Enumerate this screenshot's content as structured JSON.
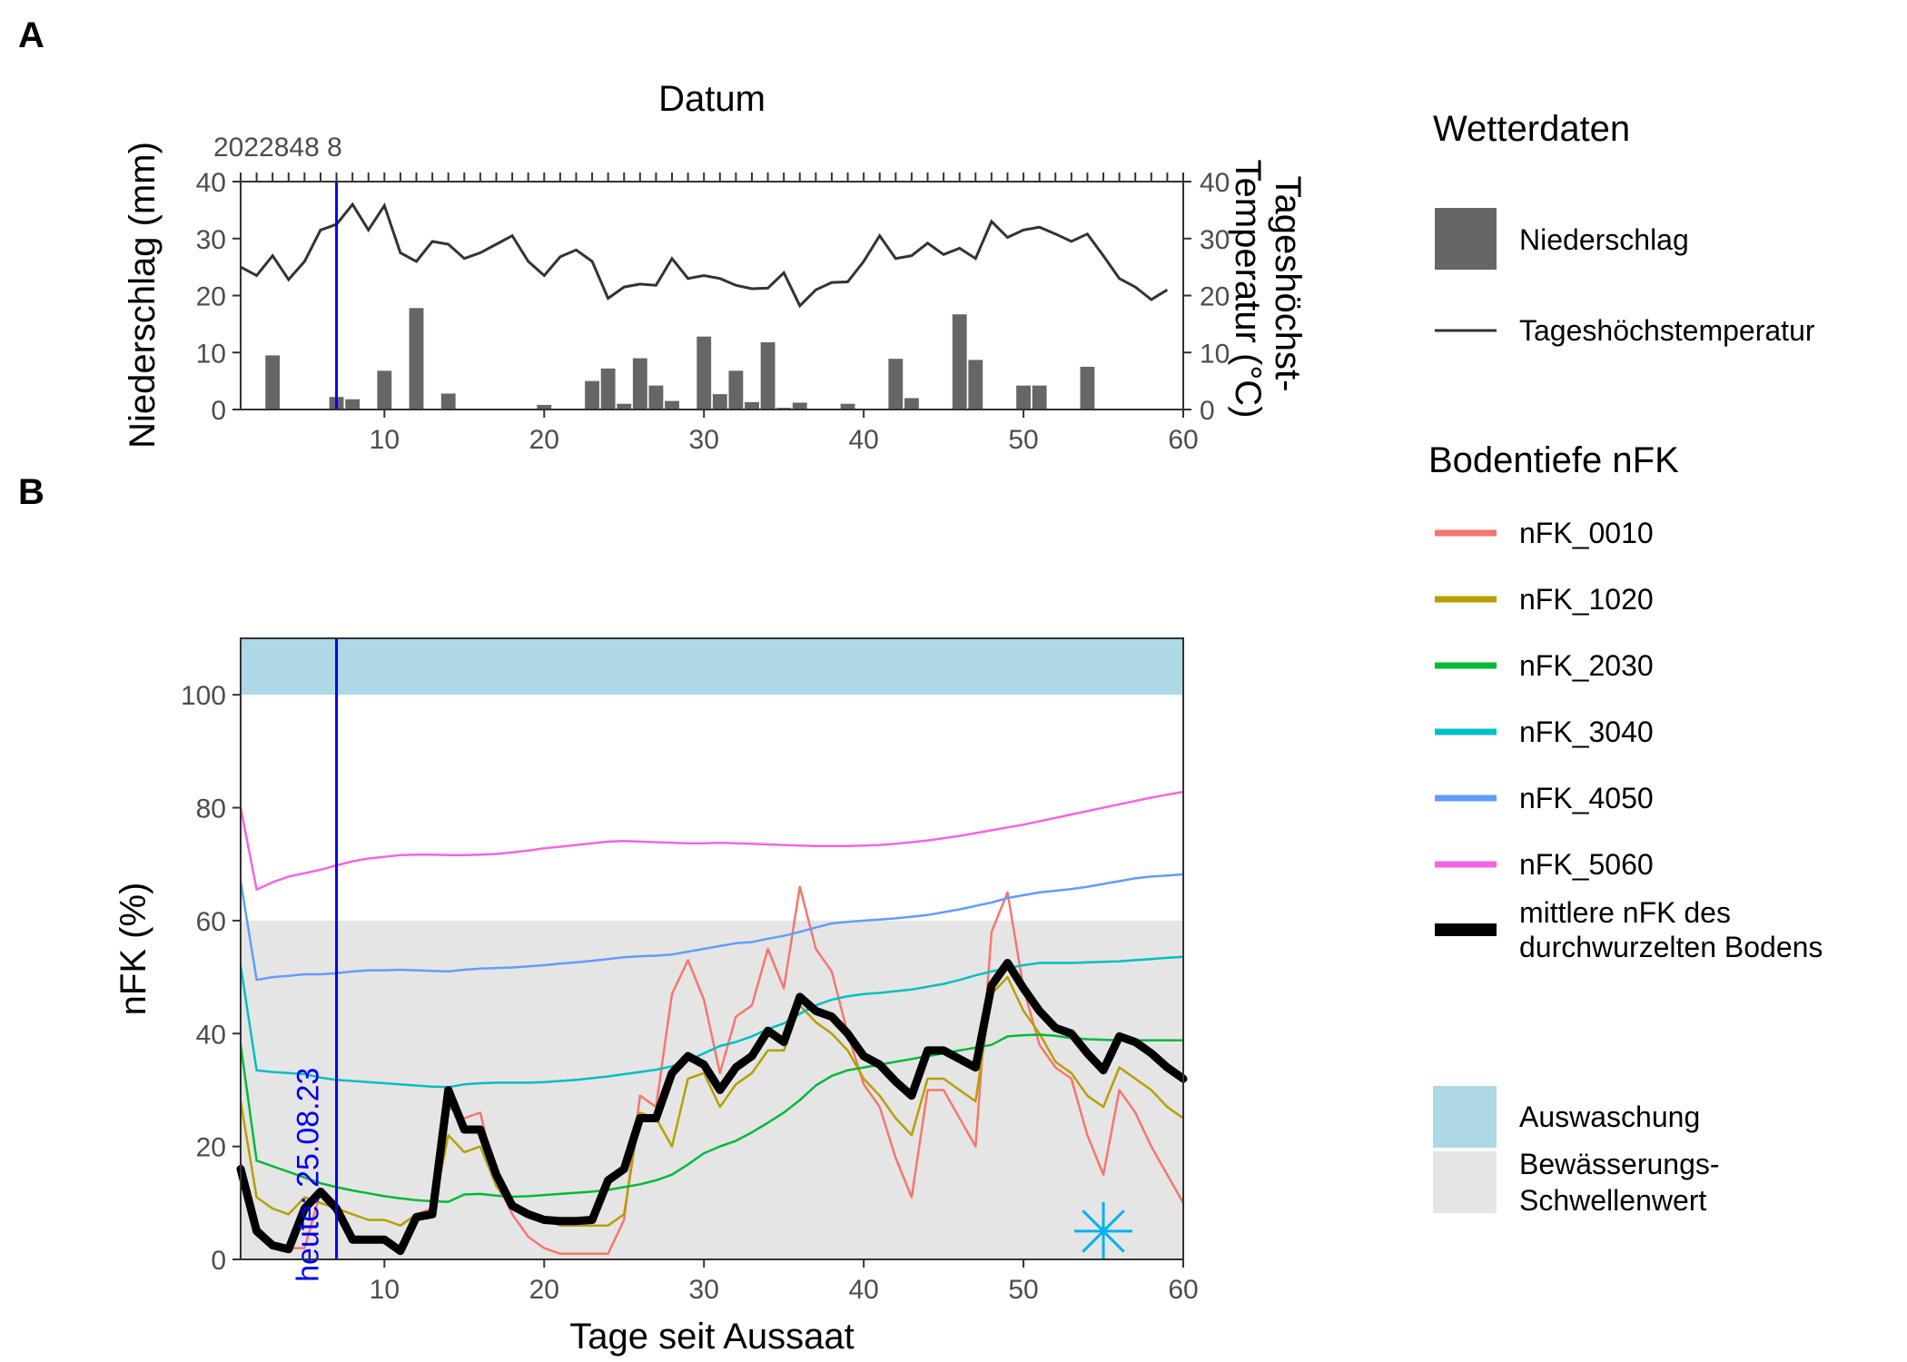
{
  "chart_data": [
    {
      "panel_label": "A",
      "type": "bar+line",
      "top_axis_title": "Datum",
      "top_axis_visible_label": "2022848 8",
      "xlabel": "",
      "ylabel_left": "Niederschlag (mm)",
      "ylabel_right": "Tageshöchst-\nTemperatur (°C)",
      "xlim": [
        1,
        60
      ],
      "ylim": [
        0,
        40
      ],
      "x_ticks": [
        10,
        20,
        30,
        40,
        50,
        60
      ],
      "y_ticks": [
        0,
        10,
        20,
        30,
        40
      ],
      "today_line_x": 7,
      "series": [
        {
          "name": "Niederschlag",
          "type": "bar",
          "color": "#666666",
          "x": [
            3,
            7,
            8,
            10,
            12,
            14,
            20,
            23,
            24,
            25,
            26,
            27,
            28,
            30,
            31,
            32,
            33,
            34,
            35,
            36,
            39,
            42,
            43,
            46,
            47,
            50,
            51,
            54
          ],
          "values": [
            9.5,
            2.2,
            1.8,
            6.8,
            17.8,
            2.8,
            0.8,
            5.0,
            7.2,
            1.0,
            9.0,
            4.2,
            1.5,
            12.8,
            2.7,
            6.8,
            1.3,
            11.8,
            0.3,
            1.2,
            1.0,
            8.9,
            2.0,
            16.7,
            8.7,
            4.2,
            4.2,
            7.5
          ]
        },
        {
          "name": "Tageshöchstemperatur",
          "type": "line",
          "color": "#333333",
          "x": [
            1,
            2,
            3,
            4,
            5,
            6,
            7,
            8,
            9,
            10,
            11,
            12,
            13,
            14,
            15,
            16,
            17,
            18,
            19,
            20,
            21,
            22,
            23,
            24,
            25,
            26,
            27,
            28,
            29,
            30,
            31,
            32,
            33,
            34,
            35,
            36,
            37,
            38,
            39,
            40,
            41,
            42,
            43,
            44,
            45,
            46,
            47,
            48,
            49,
            50,
            51,
            52,
            53,
            54,
            55,
            56,
            57,
            58,
            59
          ],
          "values": [
            25,
            23.5,
            27,
            22.8,
            26,
            31.5,
            32.5,
            36,
            31.5,
            35.8,
            27.5,
            26,
            29.5,
            29,
            26.5,
            27.5,
            29,
            30.5,
            26,
            23.5,
            26.8,
            28,
            26,
            19.5,
            21.5,
            22,
            21.8,
            26.5,
            23,
            23.5,
            23,
            21.8,
            21.2,
            21.3,
            24,
            18.2,
            21,
            22.3,
            22.4,
            26,
            30.5,
            26.5,
            27,
            29.2,
            27.2,
            28.3,
            26.5,
            33,
            30.2,
            31.5,
            32,
            30.8,
            29.5,
            30.8,
            27,
            23,
            21.5,
            19.3,
            21
          ]
        }
      ]
    },
    {
      "panel_label": "B",
      "type": "line",
      "xlabel": "Tage seit Aussaat",
      "ylabel": "nFK (%)",
      "xlim": [
        1,
        60
      ],
      "ylim": [
        0,
        110
      ],
      "x_ticks": [
        10,
        20,
        30,
        40,
        50,
        60
      ],
      "y_ticks": [
        0,
        20,
        40,
        60,
        80,
        100
      ],
      "today_line_x": 7,
      "today_label": "heute: 25.08.23",
      "bands": [
        {
          "name": "Auswaschung",
          "from": 100,
          "to": 110,
          "color": "#add8e6"
        },
        {
          "name": "Bewässerungs-\nSchwellenwert",
          "from": 0,
          "to": 60,
          "color": "#e5e5e5"
        }
      ],
      "marker": {
        "symbol": "asterisk",
        "x": 55,
        "y": 5,
        "color": "#00b2ee"
      },
      "x": [
        1,
        2,
        3,
        4,
        5,
        6,
        7,
        8,
        9,
        10,
        11,
        12,
        13,
        14,
        15,
        16,
        17,
        18,
        19,
        20,
        21,
        22,
        23,
        24,
        25,
        26,
        27,
        28,
        29,
        30,
        31,
        32,
        33,
        34,
        35,
        36,
        37,
        38,
        39,
        40,
        41,
        42,
        43,
        44,
        45,
        46,
        47,
        48,
        49,
        50,
        51,
        52,
        53,
        54,
        55,
        56,
        57,
        58,
        59,
        60
      ],
      "series": [
        {
          "name": "nFK_0010",
          "color": "#f8766d",
          "width": 2.5,
          "values": [
            17,
            6,
            3,
            2,
            2,
            12,
            10,
            3,
            3,
            3,
            2,
            8,
            9,
            27,
            25,
            26,
            14,
            8,
            4,
            2,
            1,
            1,
            1,
            1,
            7,
            29,
            27,
            47,
            53,
            46,
            33,
            43,
            45,
            55,
            48,
            66,
            55,
            51,
            40,
            31,
            27,
            18,
            11,
            30,
            30,
            25,
            20,
            58,
            65,
            48,
            38,
            34,
            32,
            22,
            15,
            30,
            26,
            20,
            15,
            10
          ]
        },
        {
          "name": "nFK_1020",
          "color": "#b79f00",
          "width": 2.5,
          "values": [
            28,
            11,
            9,
            8,
            11,
            10,
            9,
            8,
            7,
            7,
            6,
            8,
            8,
            22,
            19,
            20,
            13,
            9,
            8,
            7,
            6,
            6,
            6,
            6,
            8,
            26,
            25,
            20,
            32,
            33,
            27,
            31,
            33,
            37,
            37,
            45,
            42,
            40,
            37,
            32,
            29,
            25,
            22,
            32,
            32,
            30,
            28,
            47,
            50,
            44,
            40,
            35,
            33,
            29,
            27,
            34,
            32,
            30,
            27,
            25
          ]
        },
        {
          "name": "nFK_2030",
          "color": "#00ba38",
          "width": 2.5,
          "values": [
            38,
            17.5,
            16.5,
            15.5,
            14.5,
            13.5,
            12.8,
            12.2,
            11.7,
            11.2,
            10.8,
            10.5,
            10.3,
            10.2,
            11.5,
            11.6,
            11.3,
            11.1,
            11.2,
            11.4,
            11.6,
            11.8,
            12.0,
            12.3,
            12.8,
            13.3,
            14.0,
            15.0,
            16.8,
            18.8,
            20.0,
            21.0,
            22.5,
            24.2,
            26.0,
            28.2,
            30.8,
            32.5,
            33.5,
            34.0,
            34.5,
            35.0,
            35.5,
            36.0,
            36.5,
            37.0,
            37.5,
            38.0,
            39.5,
            39.7,
            39.8,
            39.6,
            39.2,
            39.0,
            38.9,
            38.8,
            38.8,
            38.8,
            38.8,
            38.8
          ]
        },
        {
          "name": "nFK_3040",
          "color": "#00bfc4",
          "width": 2.5,
          "values": [
            52,
            33.5,
            33.2,
            33.0,
            32.8,
            32.2,
            31.8,
            31.6,
            31.4,
            31.2,
            31.0,
            30.8,
            30.6,
            30.5,
            31.0,
            31.2,
            31.3,
            31.3,
            31.3,
            31.4,
            31.6,
            31.8,
            32.1,
            32.4,
            32.8,
            33.2,
            33.6,
            34.2,
            35.2,
            36.5,
            37.8,
            38.5,
            39.5,
            40.8,
            41.8,
            43.5,
            45.0,
            46.0,
            46.6,
            47.0,
            47.2,
            47.5,
            47.8,
            48.3,
            48.8,
            49.5,
            50.3,
            51.0,
            51.6,
            52.1,
            52.5,
            52.5,
            52.5,
            52.6,
            52.7,
            52.8,
            53.0,
            53.2,
            53.4,
            53.6
          ]
        },
        {
          "name": "nFK_4050",
          "color": "#619cff",
          "width": 2.5,
          "values": [
            67,
            49.5,
            50.0,
            50.2,
            50.5,
            50.5,
            50.7,
            51.0,
            51.2,
            51.2,
            51.3,
            51.2,
            51.1,
            51.0,
            51.3,
            51.5,
            51.6,
            51.7,
            51.9,
            52.1,
            52.4,
            52.6,
            52.9,
            53.2,
            53.5,
            53.7,
            53.8,
            54.0,
            54.5,
            55.0,
            55.5,
            56.0,
            56.2,
            56.8,
            57.3,
            58.0,
            58.8,
            59.5,
            59.8,
            60.0,
            60.2,
            60.4,
            60.7,
            61.0,
            61.5,
            62.0,
            62.6,
            63.2,
            64.0,
            64.5,
            65.0,
            65.3,
            65.6,
            66.0,
            66.5,
            67.0,
            67.5,
            67.8,
            68.0,
            68.2
          ]
        },
        {
          "name": "nFK_5060",
          "color": "#f564e3",
          "width": 2.5,
          "values": [
            80,
            65.5,
            66.8,
            67.8,
            68.4,
            69.0,
            69.8,
            70.5,
            71.0,
            71.3,
            71.6,
            71.7,
            71.7,
            71.6,
            71.6,
            71.7,
            71.8,
            72.1,
            72.4,
            72.8,
            73.1,
            73.4,
            73.7,
            74.0,
            74.1,
            74.0,
            73.9,
            73.8,
            73.7,
            73.7,
            73.8,
            73.7,
            73.6,
            73.5,
            73.4,
            73.3,
            73.2,
            73.2,
            73.2,
            73.3,
            73.4,
            73.6,
            73.9,
            74.2,
            74.6,
            75.0,
            75.5,
            76.0,
            76.5,
            77.0,
            77.6,
            78.2,
            78.8,
            79.4,
            80.0,
            80.6,
            81.2,
            81.8,
            82.3,
            82.8
          ]
        },
        {
          "name": "mittlere nFK des\ndurchwurzelten Bodens",
          "color": "#000000",
          "width": 9,
          "values": [
            16,
            5,
            2.5,
            1.8,
            9,
            12,
            9,
            3.5,
            3.5,
            3.5,
            1.5,
            7.5,
            8,
            30,
            23,
            23,
            15,
            9.5,
            8,
            7,
            6.8,
            6.8,
            7,
            14,
            16,
            25,
            25,
            33,
            36,
            34.5,
            30,
            34,
            36,
            40.5,
            38.5,
            46.5,
            44,
            43,
            40,
            36,
            34.5,
            31.5,
            29,
            37,
            37,
            35.5,
            34,
            48.5,
            52.5,
            48,
            44,
            41,
            40,
            36.5,
            33.5,
            39.5,
            38.5,
            36.5,
            34,
            32
          ]
        }
      ]
    }
  ],
  "legend": {
    "weather_title": "Wetterdaten",
    "weather_items": [
      {
        "label": "Niederschlag",
        "kind": "bar",
        "color": "#666666"
      },
      {
        "label": "Tageshöchstemperatur",
        "kind": "line",
        "color": "#333333"
      }
    ],
    "nfk_title": "Bodentiefe nFK",
    "nfk_items": [
      {
        "label": "nFK_0010",
        "color": "#f8766d"
      },
      {
        "label": "nFK_1020",
        "color": "#b79f00"
      },
      {
        "label": "nFK_2030",
        "color": "#00ba38"
      },
      {
        "label": "nFK_3040",
        "color": "#00bfc4"
      },
      {
        "label": "nFK_4050",
        "color": "#619cff"
      },
      {
        "label": "nFK_5060",
        "color": "#f564e3"
      },
      {
        "label": "mittlere nFK des\ndurchwurzelten Bodens",
        "color": "#000000"
      }
    ],
    "band_items": [
      {
        "label": "Auswaschung",
        "color": "#add8e6"
      },
      {
        "label": "Bewässerungs-\nSchwellenwert",
        "color": "#e5e5e5"
      }
    ]
  }
}
